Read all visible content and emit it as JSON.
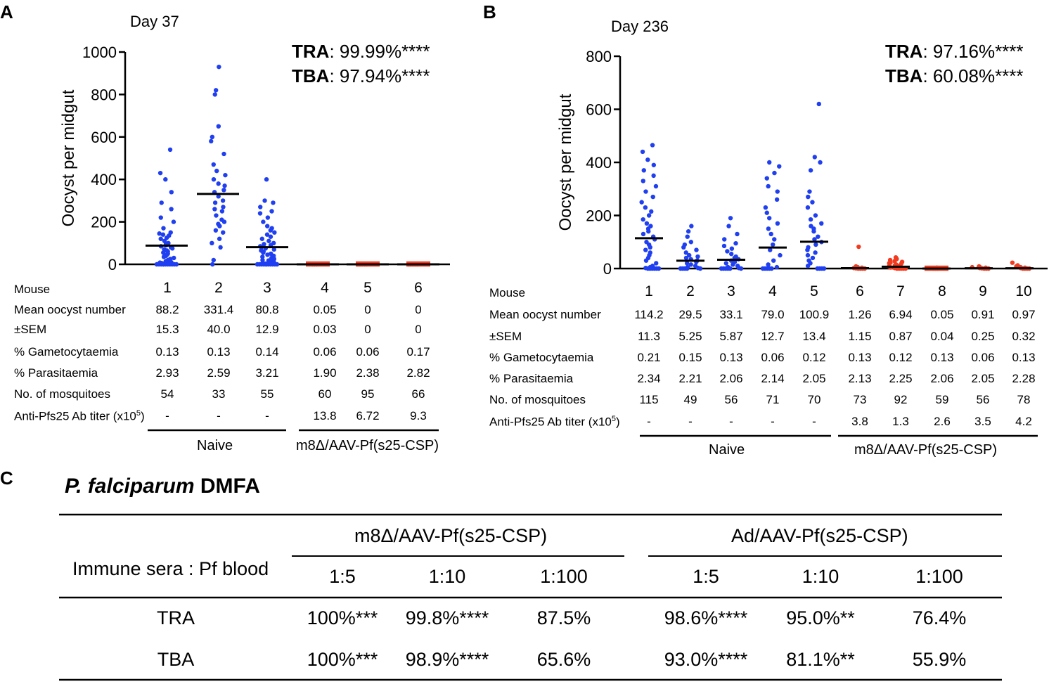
{
  "panels": {
    "a": {
      "letter": "A",
      "day": "Day 37",
      "tra_label": "TRA",
      "tra_value": ": 99.99%****",
      "tba_label": "TBA",
      "tba_value": ": 97.94%****",
      "table": {
        "rows": [
          {
            "label": "Mouse",
            "values": [
              "1",
              "2",
              "3",
              "4",
              "5",
              "6"
            ]
          },
          {
            "label": "Mean oocyst number",
            "values": [
              "88.2",
              "331.4",
              "80.8",
              "0.05",
              "0",
              "0"
            ]
          },
          {
            "label": "±SEM",
            "values": [
              "15.3",
              "40.0",
              "12.9",
              "0.03",
              "0",
              "0"
            ]
          },
          {
            "label": "% Gametocytaemia",
            "values": [
              "0.13",
              "0.13",
              "0.14",
              "0.06",
              "0.06",
              "0.17"
            ]
          },
          {
            "label": "% Parasitaemia",
            "values": [
              "2.93",
              "2.59",
              "3.21",
              "1.90",
              "2.38",
              "2.82"
            ]
          },
          {
            "label": "No. of mosquitoes",
            "values": [
              "54",
              "33",
              "55",
              "60",
              "95",
              "66"
            ]
          },
          {
            "label": "Anti-Pfs25 Ab titer (x10",
            "label_sup": "5",
            "label_tail": ")",
            "values": [
              "-",
              "-",
              "-",
              "13.8",
              "6.72",
              "9.3"
            ]
          }
        ]
      },
      "groups": [
        "Naive",
        "m8Δ/AAV-Pf(s25-CSP)"
      ]
    },
    "b": {
      "letter": "B",
      "day": "Day 236",
      "tra_label": "TRA",
      "tra_value": ": 97.16%****",
      "tba_label": "TBA",
      "tba_value": ": 60.08%****",
      "table": {
        "rows": [
          {
            "label": "Mouse",
            "values": [
              "1",
              "2",
              "3",
              "4",
              "5",
              "6",
              "7",
              "8",
              "9",
              "10"
            ]
          },
          {
            "label": "Mean oocyst number",
            "values": [
              "114.2",
              "29.5",
              "33.1",
              "79.0",
              "100.9",
              "1.26",
              "6.94",
              "0.05",
              "0.91",
              "0.97"
            ]
          },
          {
            "label": "±SEM",
            "values": [
              "11.3",
              "5.25",
              "5.87",
              "12.7",
              "13.4",
              "1.15",
              "0.87",
              "0.04",
              "0.25",
              "0.32"
            ]
          },
          {
            "label": "% Gametocytaemia",
            "values": [
              "0.21",
              "0.15",
              "0.13",
              "0.06",
              "0.12",
              "0.13",
              "0.12",
              "0.13",
              "0.06",
              "0.13"
            ]
          },
          {
            "label": "% Parasitaemia",
            "values": [
              "2.34",
              "2.21",
              "2.06",
              "2.14",
              "2.05",
              "2.13",
              "2.25",
              "2.06",
              "2.05",
              "2.28"
            ]
          },
          {
            "label": "No. of mosquitoes",
            "values": [
              "115",
              "49",
              "56",
              "71",
              "70",
              "73",
              "92",
              "59",
              "56",
              "78"
            ]
          },
          {
            "label": "Anti-Pfs25 Ab titer (x10",
            "label_sup": "5",
            "label_tail": ")",
            "values": [
              "-",
              "-",
              "-",
              "-",
              "-",
              "3.8",
              "1.3",
              "2.6",
              "3.5",
              "4.2"
            ]
          }
        ]
      },
      "groups": [
        "Naive",
        "m8Δ/AAV-Pf(s25-CSP)"
      ]
    },
    "c": {
      "letter": "C",
      "title_italic": "P. falciparum",
      "title_rest": " DMFA",
      "row_header": "Immune sera : Pf blood",
      "groups": [
        "m8Δ/AAV-Pf(s25-CSP)",
        "Ad/AAV-Pf(s25-CSP)"
      ],
      "dilutions": [
        "1:5",
        "1:10",
        "1:100",
        "1:5",
        "1:10",
        "1:100"
      ],
      "rows": [
        {
          "label": "TRA",
          "values": [
            "100%***",
            "99.8%****",
            "87.5%",
            "98.6%****",
            "95.0%**",
            "76.4%"
          ]
        },
        {
          "label": "TBA",
          "values": [
            "100%***",
            "98.9%****",
            "65.6%",
            "93.0%****",
            "81.1%**",
            "55.9%"
          ]
        }
      ]
    }
  },
  "chart_data": [
    {
      "type": "scatter",
      "title": "Day 37",
      "ylabel": "Oocyst per midgut",
      "xlabel": "",
      "ylim": [
        0,
        1000
      ],
      "yticks": [
        0,
        200,
        400,
        600,
        800,
        1000
      ],
      "categories": [
        "1",
        "2",
        "3",
        "4",
        "5",
        "6"
      ],
      "groups": [
        "Naive",
        "Naive",
        "Naive",
        "m8Δ/AAV-Pf(s25-CSP)",
        "m8Δ/AAV-Pf(s25-CSP)",
        "m8Δ/AAV-Pf(s25-CSP)"
      ],
      "colors": [
        "#1f3ff0",
        "#1f3ff0",
        "#1f3ff0",
        "#f23a1f",
        "#f23a1f",
        "#f23a1f"
      ],
      "means": [
        88.2,
        331.4,
        80.8,
        0.05,
        0,
        0
      ],
      "n": [
        54,
        33,
        55,
        60,
        95,
        66
      ],
      "points_shown": [
        [
          540,
          430,
          400,
          340,
          290,
          260,
          220,
          200,
          170,
          150,
          145,
          140,
          135,
          125,
          120,
          110,
          100,
          95,
          90,
          85,
          80,
          75,
          70,
          65,
          60,
          55,
          50,
          45,
          40,
          35,
          30,
          25,
          20,
          15,
          12,
          10,
          8,
          6,
          5,
          4,
          3,
          2,
          1,
          0,
          0,
          0,
          0,
          0,
          0,
          0,
          0,
          0,
          0,
          0
        ],
        [
          930,
          820,
          800,
          650,
          600,
          580,
          520,
          470,
          440,
          420,
          400,
          380,
          370,
          350,
          340,
          320,
          300,
          290,
          270,
          260,
          250,
          230,
          210,
          200,
          190,
          180,
          160,
          150,
          120,
          100,
          80,
          20,
          0
        ],
        [
          400,
          300,
          290,
          270,
          250,
          240,
          220,
          200,
          180,
          170,
          160,
          150,
          140,
          130,
          120,
          110,
          100,
          95,
          90,
          85,
          80,
          75,
          70,
          65,
          60,
          55,
          50,
          45,
          40,
          35,
          30,
          25,
          20,
          18,
          15,
          12,
          10,
          8,
          6,
          5,
          4,
          3,
          2,
          1,
          0,
          0,
          0,
          0,
          0,
          0,
          0,
          0,
          0,
          0,
          0
        ],
        [
          2,
          1,
          0,
          0,
          0
        ],
        [
          0,
          0,
          0,
          0,
          0
        ],
        [
          0,
          0,
          0,
          0,
          0
        ]
      ]
    },
    {
      "type": "scatter",
      "title": "Day 236",
      "ylabel": "Oocyst per midgut",
      "xlabel": "",
      "ylim": [
        0,
        800
      ],
      "yticks": [
        0,
        200,
        400,
        600,
        800
      ],
      "categories": [
        "1",
        "2",
        "3",
        "4",
        "5",
        "6",
        "7",
        "8",
        "9",
        "10"
      ],
      "groups": [
        "Naive",
        "Naive",
        "Naive",
        "Naive",
        "Naive",
        "m8Δ/AAV-Pf(s25-CSP)",
        "m8Δ/AAV-Pf(s25-CSP)",
        "m8Δ/AAV-Pf(s25-CSP)",
        "m8Δ/AAV-Pf(s25-CSP)",
        "m8Δ/AAV-Pf(s25-CSP)"
      ],
      "colors": [
        "#1f3ff0",
        "#1f3ff0",
        "#1f3ff0",
        "#1f3ff0",
        "#1f3ff0",
        "#f23a1f",
        "#f23a1f",
        "#f23a1f",
        "#f23a1f",
        "#f23a1f"
      ],
      "means": [
        114.2,
        29.5,
        33.1,
        79.0,
        100.9,
        1.26,
        6.94,
        0.05,
        0.91,
        0.97
      ],
      "n": [
        115,
        49,
        56,
        71,
        70,
        73,
        92,
        59,
        56,
        78
      ],
      "points_shown": [
        [
          465,
          440,
          410,
          390,
          370,
          350,
          330,
          310,
          290,
          270,
          250,
          230,
          215,
          200,
          185,
          170,
          160,
          150,
          140,
          130,
          120,
          110,
          100,
          90,
          80,
          70,
          60,
          50,
          40,
          30,
          20,
          10,
          5,
          2,
          0,
          0,
          0,
          0,
          0,
          0
        ],
        [
          160,
          140,
          120,
          100,
          90,
          80,
          70,
          60,
          50,
          45,
          40,
          35,
          30,
          25,
          20,
          15,
          10,
          5,
          2,
          0,
          0,
          0,
          0,
          0
        ],
        [
          190,
          160,
          130,
          110,
          95,
          85,
          75,
          65,
          55,
          45,
          40,
          35,
          30,
          25,
          20,
          15,
          10,
          5,
          2,
          0,
          0,
          0,
          0,
          0,
          0
        ],
        [
          400,
          385,
          360,
          340,
          310,
          290,
          260,
          230,
          210,
          190,
          170,
          150,
          130,
          110,
          90,
          70,
          50,
          30,
          15,
          5,
          0,
          0,
          0,
          0,
          0
        ],
        [
          620,
          420,
          400,
          370,
          290,
          270,
          250,
          230,
          200,
          185,
          170,
          160,
          150,
          140,
          120,
          110,
          100,
          90,
          80,
          70,
          60,
          50,
          40,
          30,
          20,
          10,
          0,
          0,
          0,
          0
        ],
        [
          82,
          8,
          5,
          3,
          2,
          1,
          0,
          0,
          0,
          0
        ],
        [
          42,
          36,
          32,
          28,
          25,
          22,
          20,
          18,
          15,
          12,
          10,
          8,
          6,
          4,
          2,
          0,
          0,
          0,
          0,
          0
        ],
        [
          3,
          2,
          1,
          0,
          0,
          0
        ],
        [
          8,
          6,
          5,
          4,
          3,
          2,
          1,
          0,
          0,
          0
        ],
        [
          22,
          12,
          8,
          5,
          3,
          2,
          0,
          0,
          0,
          0
        ]
      ]
    },
    {
      "type": "table",
      "title": "P. falciparum DMFA",
      "columns": [
        "1:5",
        "1:10",
        "1:100",
        "1:5",
        "1:10",
        "1:100"
      ],
      "column_groups": [
        "m8Δ/AAV-Pf(s25-CSP)",
        "Ad/AAV-Pf(s25-CSP)"
      ],
      "rows": [
        "TRA",
        "TBA"
      ],
      "values": [
        [
          "100%***",
          "99.8%****",
          "87.5%",
          "98.6%****",
          "95.0%**",
          "76.4%"
        ],
        [
          "100%***",
          "98.9%****",
          "65.6%",
          "93.0%****",
          "81.1%**",
          "55.9%"
        ]
      ]
    }
  ]
}
